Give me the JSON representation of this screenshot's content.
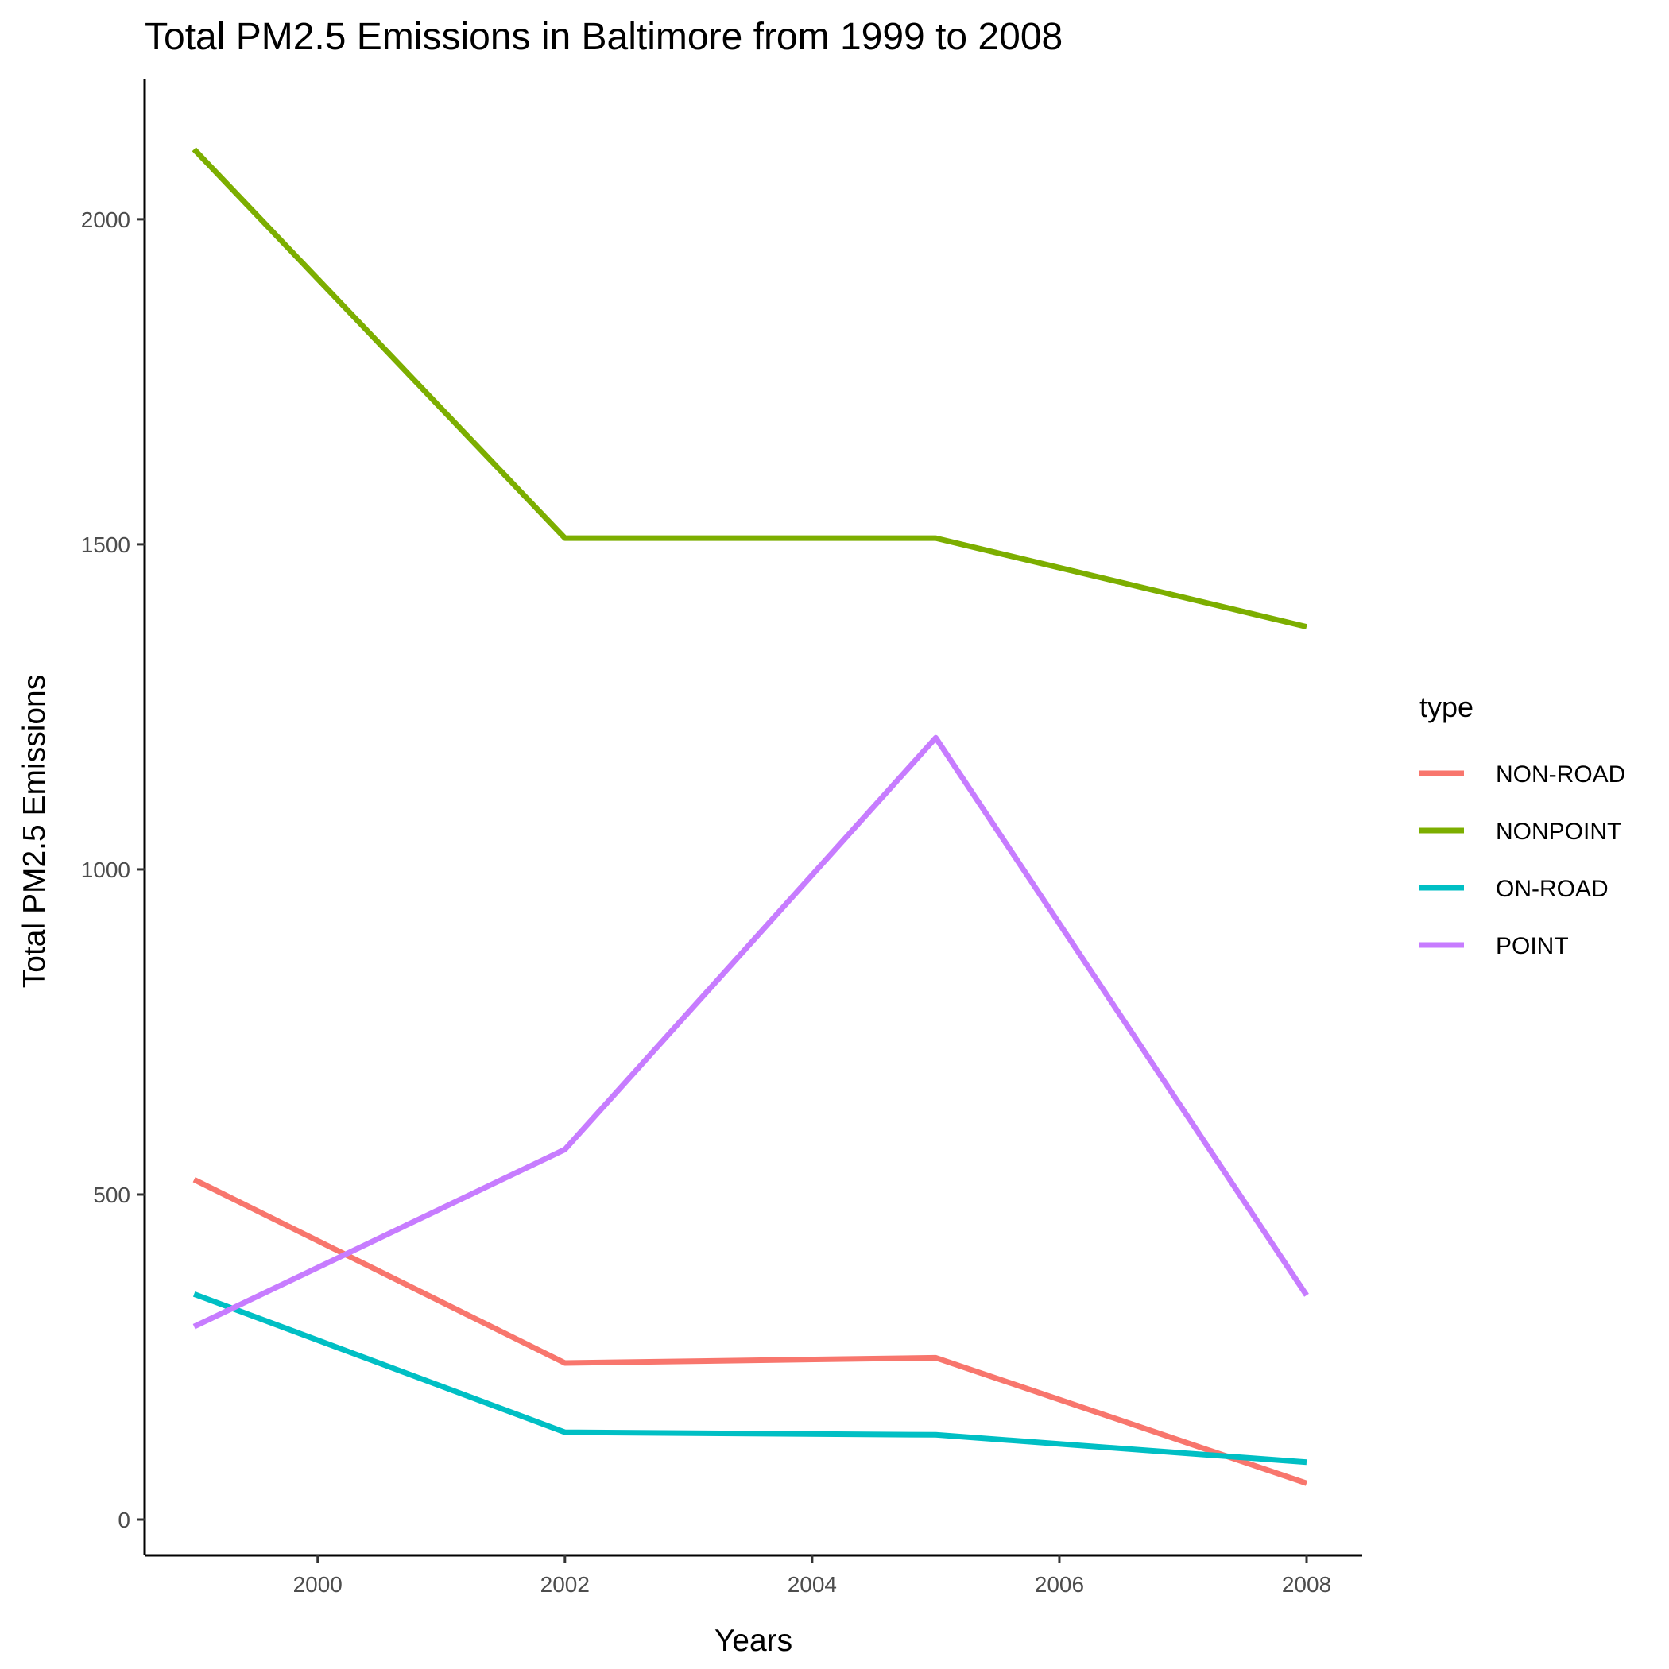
{
  "chart_data": {
    "type": "line",
    "title": "Total PM2.5 Emissions in Baltimore from 1999 to 2008",
    "xlabel": "Years",
    "ylabel": "Total PM2.5 Emissions",
    "x": [
      1999,
      2002,
      2005,
      2008
    ],
    "xlim": [
      1998.6,
      2008.45
    ],
    "ylim": [
      -55,
      2215
    ],
    "x_ticks": [
      2000,
      2002,
      2004,
      2006,
      2008
    ],
    "y_ticks": [
      0,
      500,
      1000,
      1500,
      2000
    ],
    "grid": false,
    "legend": {
      "title": "type",
      "placement": "right"
    },
    "series": [
      {
        "name": "NON-ROAD",
        "color": "#F8766D",
        "values": [
          522.94,
          240.85,
          248.93,
          55.82
        ]
      },
      {
        "name": "NONPOINT",
        "color": "#7CAE00",
        "values": [
          2107.63,
          1509.5,
          1509.5,
          1373.21
        ]
      },
      {
        "name": "ON-ROAD",
        "color": "#00BFC4",
        "values": [
          346.82,
          134.31,
          130.43,
          88.28
        ]
      },
      {
        "name": "POINT",
        "color": "#C77CFF",
        "values": [
          296.8,
          569.26,
          1202.49,
          344.98
        ]
      }
    ]
  }
}
